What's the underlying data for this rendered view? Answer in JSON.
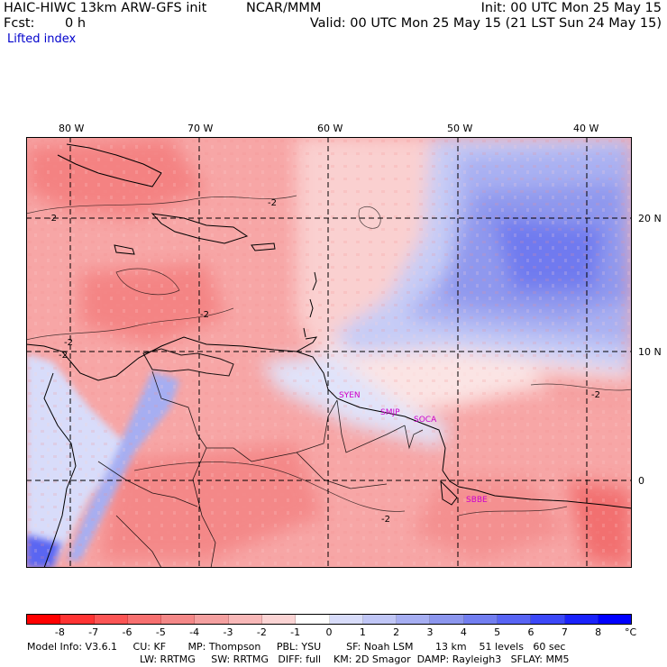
{
  "header": {
    "model_title": "HAIC-HIWC 13km ARW-GFS init",
    "center": "NCAR/MMM",
    "init": "Init: 00 UTC Mon 25 May 15",
    "fcst_label": "Fcst:",
    "fcst_value": "0 h",
    "valid": "Valid: 00 UTC Mon 25 May 15 (21 LST Sun 24 May 15)",
    "field": "Lifted index"
  },
  "map": {
    "lon_labels": [
      "80 W",
      "70 W",
      "60 W",
      "50 W",
      "40 W"
    ],
    "lat_labels": [
      "20 N",
      "10 N",
      "0"
    ],
    "contour_labels": [
      "-2",
      "-2",
      "-2",
      "-2",
      "-2",
      "-2",
      "-2"
    ],
    "stations": [
      "SYEN",
      "SMJP",
      "SOCA",
      "SBBE"
    ],
    "station_color": "#cc00cc"
  },
  "colorbar": {
    "ticks": [
      "-8",
      "-7",
      "-6",
      "-5",
      "-4",
      "-3",
      "-2",
      "-1",
      "0",
      "1",
      "2",
      "3",
      "4",
      "5",
      "6",
      "7",
      "8"
    ],
    "unit": "°C",
    "colors": [
      "#ff0000",
      "#ff3333",
      "#fc5555",
      "#f77070",
      "#f48888",
      "#f4a0a0",
      "#f8b8b8",
      "#fbd4d4",
      "#ffffff",
      "#d8dcfa",
      "#c0c6f6",
      "#a6aef2",
      "#8c96ee",
      "#727ef0",
      "#5864f4",
      "#3c48f8",
      "#1a22fc",
      "#0000ff"
    ]
  },
  "footer": {
    "line1": "Model Info: V3.6.1     CU: KF       MP: Thompson     PBL: YSU        SF: Noah LSM       13 km    51 levels   60 sec",
    "line2": "LW: RRTMG     SW: RRTMG   DIFF: full    KM: 2D Smagor  DAMP: Rayleigh3   SFLAY: MM5"
  }
}
